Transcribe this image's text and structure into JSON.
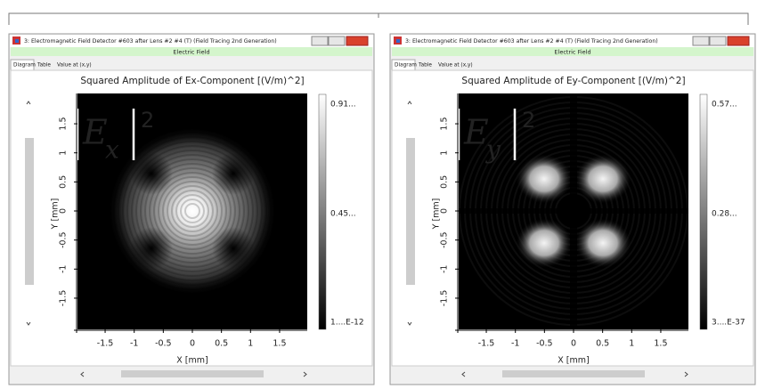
{
  "windows": [
    {
      "title": "3: Electromagnetic Field Detector #603 after Lens #2 #4 (T) (Field Tracing 2nd Generation)",
      "subtitle": "Electric Field",
      "tabs": [
        "Diagram",
        "Table",
        "Value at (x,y)"
      ],
      "plot_title": "Squared Amplitude of Ex-Component  [(V/m)^2]",
      "field": {
        "symbol": "E",
        "component": "x",
        "power": "2"
      },
      "colorbar_labels": [
        "0.91...",
        "0.45...",
        "1....E-12"
      ],
      "y_axis_label": "Y [mm]",
      "x_axis_label": "X [mm]",
      "xticks": [
        -1.5,
        -1,
        -0.5,
        0,
        0.5,
        1,
        1.5
      ],
      "yticks": [
        1.5,
        1,
        0.5,
        0,
        -0.5,
        -1,
        -1.5
      ]
    },
    {
      "title": "3: Electromagnetic Field Detector #603 after Lens #2 #4 (T) (Field Tracing 2nd Generation)",
      "subtitle": "Electric Field",
      "tabs": [
        "Diagram",
        "Table",
        "Value at (x,y)"
      ],
      "plot_title": "Squared Amplitude of Ey-Component  [(V/m)^2]",
      "field": {
        "symbol": "E",
        "component": "y",
        "power": "2"
      },
      "colorbar_labels": [
        "0.57...",
        "0.28...",
        "3....E-37"
      ],
      "y_axis_label": "Y [mm]",
      "x_axis_label": "X [mm]",
      "xticks": [
        -1.5,
        -1,
        -0.5,
        0,
        0.5,
        1,
        1.5
      ],
      "yticks": [
        1.5,
        1,
        0.5,
        0,
        -0.5,
        -1,
        -1.5
      ]
    }
  ]
}
